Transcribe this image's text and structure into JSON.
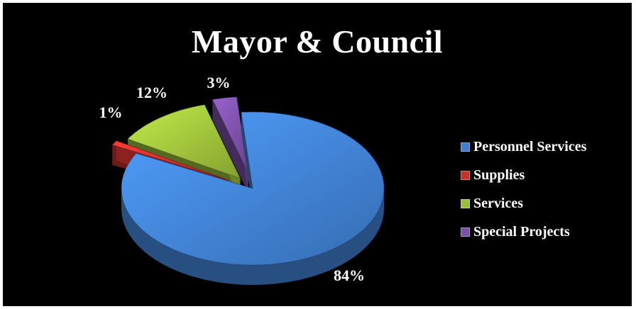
{
  "chart_data": {
    "type": "pie",
    "title": "Mayor & Council",
    "categories": [
      "Personnel Services",
      "Supplies",
      "Services",
      "Special Projects"
    ],
    "values": [
      84,
      1,
      12,
      3
    ],
    "labels": [
      "84%",
      "1%",
      "12%",
      "3%"
    ],
    "colors": [
      "#3f7fd1",
      "#c8302c",
      "#9bbd3a",
      "#7a4fa6"
    ],
    "legend_position": "right",
    "style": "3d-exploded"
  }
}
